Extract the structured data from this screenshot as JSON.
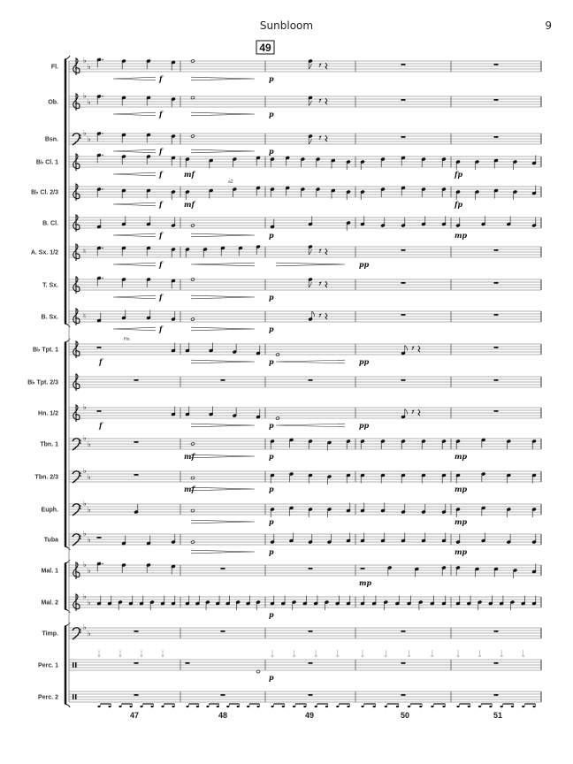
{
  "header": {
    "title": "Sunbloom",
    "page_number": "9"
  },
  "rehearsal_mark": "49",
  "measure_numbers": [
    "47",
    "48",
    "49",
    "50",
    "51"
  ],
  "staves": [
    {
      "name": "Fl.",
      "clef": "treble",
      "key": "bb",
      "m": [
        "5. 4 4 3",
        "4w",
        "4e",
        "R",
        "R"
      ],
      "dyn": [
        "f",
        "",
        "p",
        "",
        ""
      ],
      "hp": [
        "<",
        ">",
        "",
        "",
        ""
      ]
    },
    {
      "name": "Ob.",
      "clef": "treble",
      "key": "bb",
      "m": [
        "4. 3 3 2",
        "3w",
        "3e",
        "R",
        "R"
      ],
      "dyn": [
        "f",
        "",
        "p",
        "",
        ""
      ],
      "hp": [
        "<",
        ">",
        "",
        "",
        ""
      ]
    },
    {
      "name": "Bsn.",
      "clef": "bass",
      "key": "bb",
      "m": [
        "4. 3 3 2",
        "2w",
        "2e",
        "R",
        "R"
      ],
      "dyn": [
        "f",
        "",
        "p",
        "",
        ""
      ],
      "hp": [
        "<",
        ">",
        "",
        "",
        ""
      ]
    },
    {
      "name": "B♭ Cl. 1",
      "clef": "treble",
      "key": "",
      "m": [
        "5. 4 4 3",
        "2 1 2 3",
        "2 3 2 2 1 0",
        "0 2 3 2 2",
        "0 0 1 0 -1"
      ],
      "dyn": [
        "f",
        "mf",
        "",
        "",
        "fp"
      ],
      "hp": [
        "<",
        "",
        "",
        "",
        ""
      ]
    },
    {
      "name": "B♭ Cl. 2/3",
      "clef": "treble",
      "key": "",
      "m": [
        "2. 1 1 0",
        "0 1 2 3",
        "2 3 2 2 1 0",
        "0 2 3 2 2",
        "0 0 1 0 -1"
      ],
      "dyn": [
        "f",
        "mf",
        "",
        "",
        "fp"
      ],
      "hp": [
        "<",
        "",
        "",
        "",
        ""
      ],
      "extra": "a2"
    },
    {
      "name": "B. Cl.",
      "clef": "treble",
      "key": "",
      "m": [
        "-3 -1 -1 -2",
        "-2w",
        "-3 -1 0",
        "-1 -2 -2 -1 -1",
        "-2 -1 -1 -2"
      ],
      "dyn": [
        "f",
        "",
        "p",
        "",
        "mp"
      ],
      "hp": [
        "<",
        ">",
        "",
        "",
        ""
      ]
    },
    {
      "name": "A. Sx. 1/2",
      "clef": "treble",
      "key": "n",
      "m": [
        "3. 3 3 2",
        "2 2 3 3 4",
        "4e",
        "R",
        "R"
      ],
      "dyn": [
        "f",
        "",
        "",
        "pp",
        ""
      ],
      "hp": [
        "<",
        "<",
        ">",
        "",
        ""
      ]
    },
    {
      "name": "T. Sx.",
      "clef": "treble",
      "key": "",
      "m": [
        "5. 4 4 3",
        "4w",
        "4e",
        "R",
        "R"
      ],
      "dyn": [
        "f",
        "",
        "p",
        "",
        ""
      ],
      "hp": [
        "<",
        ">",
        "",
        "",
        ""
      ]
    },
    {
      "name": "B. Sx.",
      "clef": "treble",
      "key": "n",
      "m": [
        "-3 -1 -1 -2",
        "-2w",
        "-2e",
        "R",
        "R"
      ],
      "dyn": [
        "f",
        "",
        "p",
        "",
        ""
      ],
      "hp": [
        "<",
        ">",
        "",
        "",
        ""
      ]
    },
    {
      "name": "B♭ Tpt. 1",
      "clef": "treble",
      "key": "",
      "m": [
        "R -1",
        "-1 -1 -2 -3",
        "-4w",
        "-3e",
        "R"
      ],
      "dyn": [
        "f",
        "",
        "p",
        "pp",
        ""
      ],
      "hp": [
        "",
        ">",
        "<",
        "",
        ""
      ],
      "extra": "Hn."
    },
    {
      "name": "B♭ Tpt. 2/3",
      "clef": "treble",
      "key": "",
      "m": [
        "R",
        "R",
        "R",
        "R",
        "R"
      ],
      "dyn": [
        "",
        "",
        "",
        "",
        ""
      ],
      "hp": [
        "",
        "",
        "",
        "",
        ""
      ]
    },
    {
      "name": "Hn. 1/2",
      "clef": "treble",
      "key": "b",
      "m": [
        "R -1",
        "-1 -1 -2 -3",
        "-4w",
        "-3e",
        "R"
      ],
      "dyn": [
        "f",
        "",
        "p",
        "pp",
        ""
      ],
      "hp": [
        "",
        ">",
        "<",
        "",
        ""
      ]
    },
    {
      "name": "Tbn. 1",
      "clef": "bass",
      "key": "bb",
      "m": [
        "R",
        "0w",
        "2 3 2 1 2",
        "2 2 2 2 2",
        "2 3 2 2"
      ],
      "dyn": [
        "",
        "mf",
        "p",
        "",
        "mp"
      ],
      "hp": [
        "",
        ">",
        "",
        "",
        ""
      ]
    },
    {
      "name": "Tbn. 2/3",
      "clef": "bass",
      "key": "bb",
      "m": [
        "R",
        "-1w",
        "1 2 1 0 1",
        "1 1 1 1 1",
        "1 2 1 1"
      ],
      "dyn": [
        "",
        "mf",
        "p",
        "",
        "mp"
      ],
      "hp": [
        "",
        ">",
        "",
        "",
        ""
      ]
    },
    {
      "name": "Euph.",
      "clef": "bass",
      "key": "bb",
      "m": [
        "-2",
        "-1w",
        "0 1 0 0 -1",
        "-1 -1 -2 -2 -2",
        "0 1 0 0"
      ],
      "dyn": [
        "",
        "",
        "p",
        "",
        "mp"
      ],
      "hp": [
        "",
        ">",
        "",
        "",
        ""
      ]
    },
    {
      "name": "Tuba",
      "clef": "bass",
      "key": "bb",
      "m": [
        "R -3 -3 -2",
        "-2w",
        "-2 -1 -2 -2 -1",
        "-1 -1 -1 -1 -1",
        "-2 -1 -2 -2"
      ],
      "dyn": [
        "",
        "",
        "p",
        "",
        "mp"
      ],
      "hp": [
        "",
        ">",
        "",
        "",
        ""
      ]
    },
    {
      "name": "Mal. 1",
      "clef": "treble",
      "key": "bb",
      "m": [
        "5. 4 4 3",
        "R",
        "R",
        "R 2 1 2",
        "2 1 1 0 -1"
      ],
      "dyn": [
        "",
        "",
        "",
        "mp",
        ""
      ],
      "hp": [
        "",
        "",
        "",
        "",
        ""
      ]
    },
    {
      "name": "Mal. 2",
      "clef": "treble",
      "key": "bb",
      "m": [
        "-1 -1 0 -1 -1 0 -1 -1",
        "-1 -1 0 -1 -1 0 -1 0",
        "-1 -1 0 -1 -1 0 -1 -1",
        "-1 -1 0 -1 -1 0 -1 -1",
        "-1 -1 0 -1 -1 0 -1 -1"
      ],
      "dyn": [
        "",
        "",
        "p",
        "",
        ""
      ],
      "hp": [
        "",
        "",
        "",
        "",
        ""
      ]
    },
    {
      "name": "Timp.",
      "clef": "bass",
      "key": "bb",
      "m": [
        "R",
        "R",
        "R",
        "R",
        "R"
      ],
      "dyn": [
        "",
        "",
        "",
        "",
        ""
      ],
      "hp": [
        "",
        "",
        "",
        "",
        ""
      ]
    },
    {
      "name": "Perc. 1",
      "clef": "perc",
      "key": "",
      "m": [
        "R",
        "R -5w",
        "R",
        "R",
        "R"
      ],
      "dyn": [
        "",
        "",
        "p",
        "",
        ""
      ],
      "hp": [
        "",
        "",
        "",
        "",
        ""
      ]
    },
    {
      "name": "Perc. 2",
      "clef": "perc",
      "key": "",
      "m": [
        "R",
        "R",
        "R",
        "R",
        "R"
      ],
      "dyn": [
        "",
        "",
        "",
        "",
        ""
      ],
      "hp": [
        "",
        "",
        "",
        "",
        ""
      ]
    }
  ]
}
